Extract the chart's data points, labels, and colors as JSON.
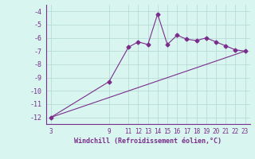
{
  "x": [
    3,
    9,
    11,
    12,
    13,
    14,
    15,
    16,
    17,
    18,
    19,
    20,
    21,
    22,
    23
  ],
  "y": [
    -12.0,
    -9.3,
    -6.7,
    -6.3,
    -6.5,
    -4.2,
    -6.5,
    -5.8,
    -6.1,
    -6.2,
    -6.0,
    -6.3,
    -6.6,
    -6.9,
    -7.0
  ],
  "trend_x": [
    3,
    23
  ],
  "trend_y": [
    -12.0,
    -7.0
  ],
  "line_color": "#7b2d8b",
  "bg_color": "#d8f5f0",
  "grid_color": "#b8ddd8",
  "text_color": "#7b2d8b",
  "xlabel": "Windchill (Refroidissement éolien,°C)",
  "ylim": [
    -12.5,
    -3.5
  ],
  "xlim": [
    2.5,
    23.5
  ],
  "yticks": [
    -12,
    -11,
    -10,
    -9,
    -8,
    -7,
    -6,
    -5,
    -4
  ],
  "xticks": [
    3,
    9,
    11,
    12,
    13,
    14,
    15,
    16,
    17,
    18,
    19,
    20,
    21,
    22,
    23
  ]
}
